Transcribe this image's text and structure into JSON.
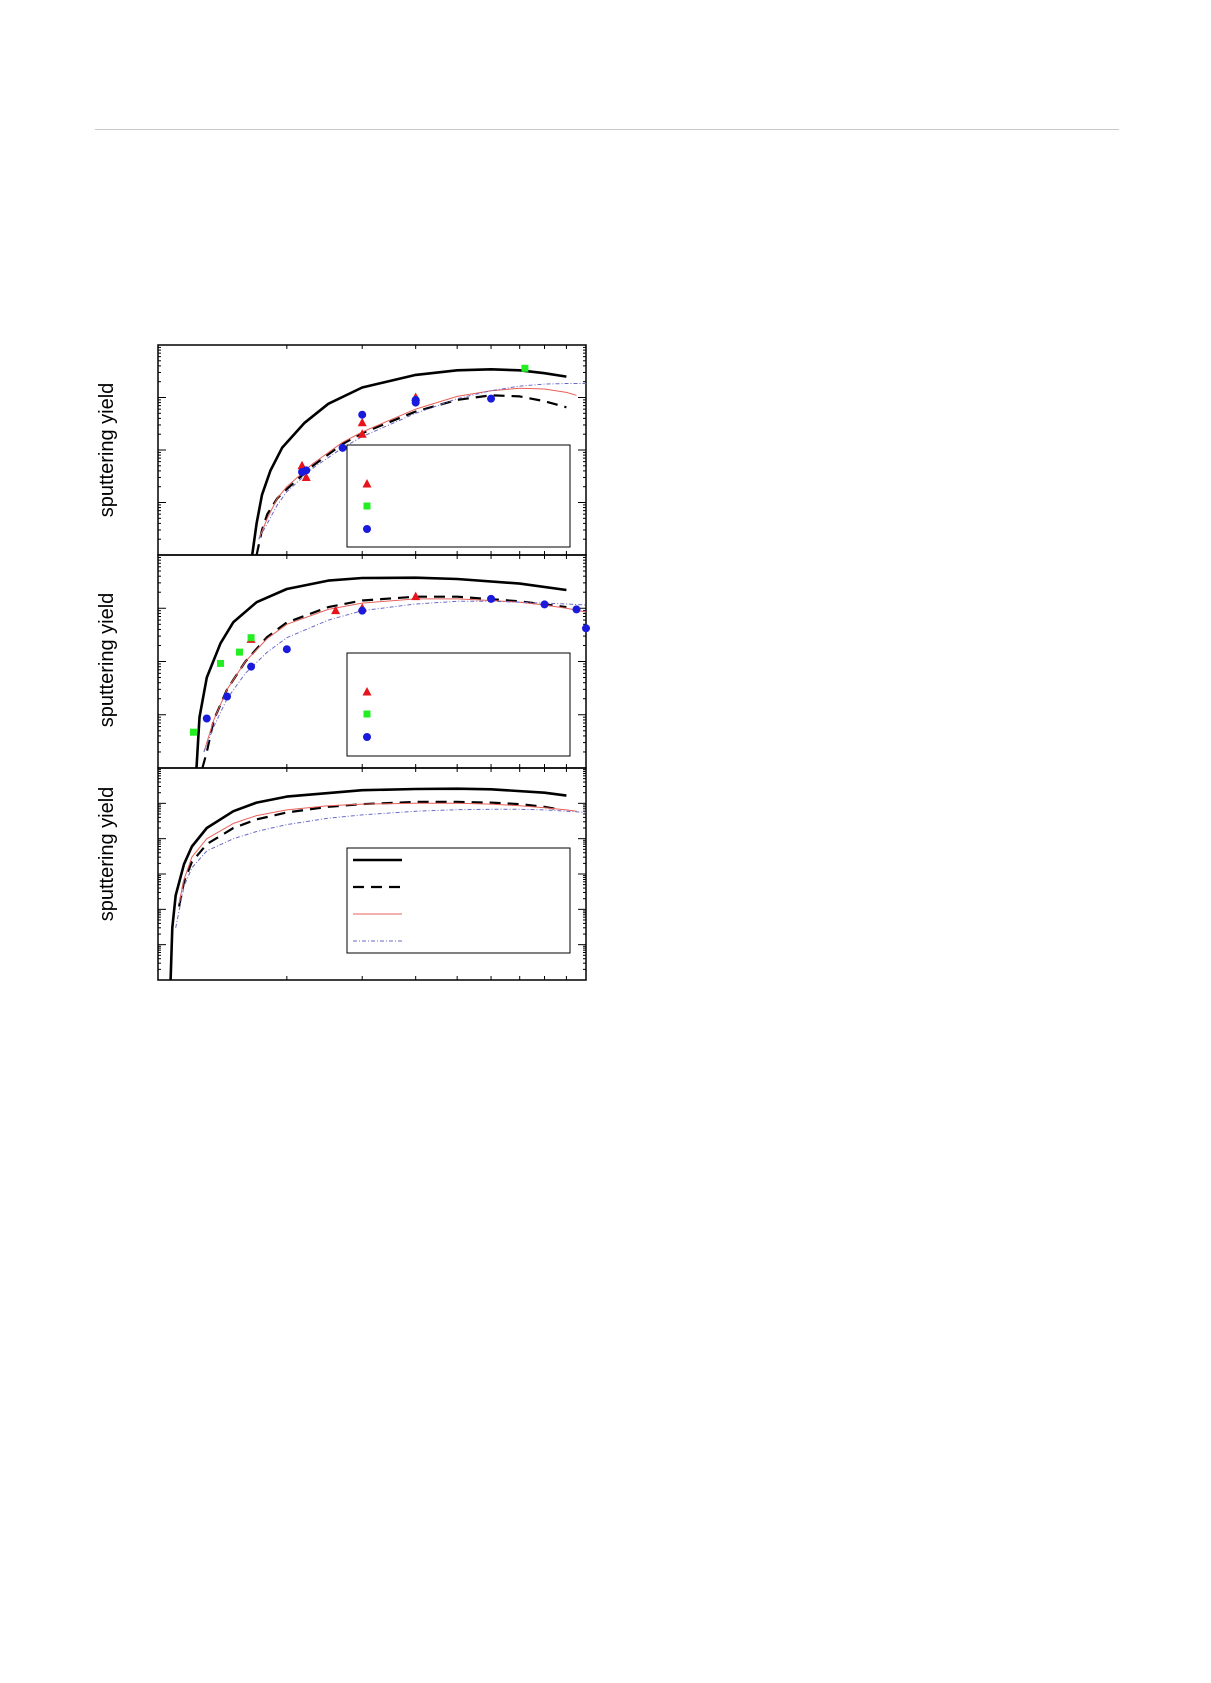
{
  "colors": {
    "rule": "#c8c8c8",
    "axis": "#000000",
    "red": "#e8141c",
    "green": "#22ee22",
    "blue": "#1a1adc",
    "thin_red": "#e8605a",
    "dashdot_blue": "#6a6ac8"
  },
  "chart_data": [
    {
      "type": "line",
      "panel": "top",
      "ylabel": "sputtering yield",
      "xscale": "log",
      "yscale": "log",
      "xlim": [
        1,
        10
      ],
      "ylim": [
        0.001,
        10
      ],
      "grid": false,
      "legend_placement": "lower-right",
      "series": [
        {
          "style": "solid-thick-black",
          "x": [
            1.66,
            1.7,
            1.75,
            1.83,
            1.95,
            2.2,
            2.5,
            3.0,
            4.0,
            5.0,
            6.0,
            7.0,
            8.0,
            9.0
          ],
          "y": [
            0.001,
            0.004,
            0.014,
            0.04,
            0.11,
            0.33,
            0.76,
            1.55,
            2.7,
            3.3,
            3.45,
            3.3,
            2.9,
            2.5
          ]
        },
        {
          "style": "dashed-black",
          "x": [
            1.7,
            1.75,
            1.8,
            1.9,
            2.0,
            2.3,
            2.7,
            3.0,
            4.0,
            5.0,
            6.0,
            7.0,
            8.0,
            9.0
          ],
          "y": [
            0.001,
            0.003,
            0.006,
            0.012,
            0.018,
            0.05,
            0.13,
            0.21,
            0.54,
            0.9,
            1.1,
            1.05,
            0.85,
            0.65
          ]
        },
        {
          "style": "thin-red",
          "x": [
            1.72,
            1.8,
            1.9,
            2.0,
            2.3,
            2.7,
            3.0,
            4.0,
            5.0,
            6.0,
            7.0,
            8.0,
            9.0,
            9.5
          ],
          "y": [
            0.002,
            0.005,
            0.012,
            0.02,
            0.055,
            0.14,
            0.22,
            0.6,
            1.05,
            1.35,
            1.5,
            1.45,
            1.25,
            1.1
          ]
        },
        {
          "style": "dashdot-blue",
          "x": [
            1.72,
            1.8,
            1.9,
            2.0,
            2.3,
            2.7,
            3.0,
            4.0,
            5.0,
            6.0,
            7.0,
            8.0,
            9.0,
            10.0
          ],
          "y": [
            0.002,
            0.004,
            0.009,
            0.016,
            0.045,
            0.11,
            0.18,
            0.5,
            0.95,
            1.35,
            1.65,
            1.8,
            1.85,
            1.85
          ]
        }
      ],
      "points": [
        {
          "marker": "triangle",
          "color": "red",
          "xy": [
            [
              2.17,
              0.05
            ],
            [
              2.22,
              0.03
            ],
            [
              3.0,
              0.33
            ],
            [
              3.0,
              0.2
            ],
            [
              4.0,
              1.0
            ]
          ]
        },
        {
          "marker": "square",
          "color": "green",
          "xy": [
            [
              7.2,
              3.6
            ]
          ]
        },
        {
          "marker": "circle",
          "color": "blue",
          "xy": [
            [
              2.17,
              0.038
            ],
            [
              2.22,
              0.041
            ],
            [
              2.7,
              0.11
            ],
            [
              3.0,
              0.47
            ],
            [
              4.0,
              0.9
            ],
            [
              4.0,
              0.8
            ],
            [
              6.0,
              0.95
            ]
          ]
        }
      ]
    },
    {
      "type": "line",
      "panel": "middle",
      "ylabel": "sputtering yield",
      "xscale": "log",
      "yscale": "log",
      "xlim": [
        1,
        10
      ],
      "ylim": [
        0.001,
        10
      ],
      "grid": false,
      "legend_placement": "lower-right",
      "series": [
        {
          "style": "solid-thick-black",
          "x": [
            1.23,
            1.25,
            1.3,
            1.4,
            1.5,
            1.7,
            2.0,
            2.5,
            3.0,
            4.0,
            5.0,
            7.0,
            9.0
          ],
          "y": [
            0.001,
            0.009,
            0.05,
            0.22,
            0.55,
            1.3,
            2.3,
            3.3,
            3.7,
            3.75,
            3.55,
            2.9,
            2.2
          ]
        },
        {
          "style": "dashed-black",
          "x": [
            1.27,
            1.3,
            1.35,
            1.45,
            1.6,
            1.8,
            2.0,
            2.5,
            3.0,
            4.0,
            5.0,
            7.0,
            9.0
          ],
          "y": [
            0.001,
            0.002,
            0.008,
            0.03,
            0.1,
            0.29,
            0.54,
            1.05,
            1.4,
            1.65,
            1.65,
            1.35,
            1.05
          ]
        },
        {
          "style": "thin-red",
          "x": [
            1.28,
            1.35,
            1.45,
            1.6,
            1.8,
            2.0,
            2.5,
            3.0,
            4.0,
            5.0,
            6.0,
            7.0,
            8.0,
            9.0,
            10.0
          ],
          "y": [
            0.002,
            0.008,
            0.03,
            0.1,
            0.27,
            0.5,
            0.95,
            1.25,
            1.5,
            1.5,
            1.4,
            1.3,
            1.15,
            1.0,
            0.85
          ]
        },
        {
          "style": "dashdot-blue",
          "x": [
            1.28,
            1.35,
            1.45,
            1.6,
            1.8,
            2.0,
            2.5,
            3.0,
            4.0,
            5.0,
            6.0,
            7.0,
            8.0,
            9.0,
            10.0
          ],
          "y": [
            0.002,
            0.006,
            0.02,
            0.06,
            0.15,
            0.28,
            0.6,
            0.9,
            1.2,
            1.35,
            1.35,
            1.3,
            1.25,
            1.2,
            1.15
          ]
        }
      ],
      "points": [
        {
          "marker": "triangle",
          "color": "red",
          "xy": [
            [
              1.65,
              0.26
            ],
            [
              2.6,
              0.9
            ],
            [
              3.0,
              1.0
            ],
            [
              4.0,
              1.65
            ]
          ]
        },
        {
          "marker": "square",
          "color": "green",
          "xy": [
            [
              1.21,
              0.0047
            ],
            [
              1.4,
              0.092
            ],
            [
              1.55,
              0.15
            ],
            [
              1.65,
              0.28
            ]
          ]
        },
        {
          "marker": "circle",
          "color": "blue",
          "xy": [
            [
              1.3,
              0.0085
            ],
            [
              1.45,
              0.022
            ],
            [
              1.65,
              0.08
            ],
            [
              2.0,
              0.17
            ],
            [
              3.0,
              0.9
            ],
            [
              6.0,
              1.5
            ],
            [
              8.0,
              1.18
            ],
            [
              9.5,
              0.95
            ],
            [
              10.0,
              0.42
            ]
          ]
        }
      ]
    },
    {
      "type": "line",
      "panel": "bottom",
      "ylabel": "sputtering yield",
      "xscale": "log",
      "yscale": "log",
      "xlim": [
        1,
        10
      ],
      "ylim": [
        1e-05,
        10
      ],
      "grid": false,
      "legend_placement": "lower-right",
      "series": [
        {
          "style": "solid-thick-black",
          "x": [
            1.07,
            1.08,
            1.1,
            1.15,
            1.2,
            1.3,
            1.5,
            1.7,
            2.0,
            3.0,
            4.0,
            5.0,
            6.0,
            8.0,
            9.0
          ],
          "y": [
            1e-05,
            0.0003,
            0.0025,
            0.019,
            0.06,
            0.2,
            0.6,
            1.05,
            1.55,
            2.35,
            2.55,
            2.6,
            2.5,
            2.0,
            1.65
          ]
        },
        {
          "style": "dashed-black",
          "x": [
            1.12,
            1.15,
            1.2,
            1.3,
            1.5,
            1.7,
            2.0,
            2.5,
            3.0,
            4.0,
            5.0,
            6.0,
            7.0,
            8.0,
            8.5
          ],
          "y": [
            0.0012,
            0.006,
            0.022,
            0.07,
            0.2,
            0.35,
            0.55,
            0.8,
            0.95,
            1.1,
            1.1,
            1.05,
            0.95,
            0.8,
            0.7
          ]
        },
        {
          "style": "thin-red",
          "x": [
            1.12,
            1.15,
            1.2,
            1.3,
            1.5,
            1.7,
            2.0,
            2.5,
            3.0,
            4.0,
            5.0,
            6.0,
            7.0,
            8.0,
            9.0,
            9.5
          ],
          "y": [
            0.0015,
            0.007,
            0.03,
            0.1,
            0.27,
            0.45,
            0.65,
            0.85,
            0.95,
            1.0,
            1.0,
            0.95,
            0.85,
            0.75,
            0.65,
            0.6
          ]
        },
        {
          "style": "dashdot-blue",
          "x": [
            1.1,
            1.15,
            1.2,
            1.3,
            1.5,
            1.7,
            2.0,
            2.5,
            3.0,
            4.0,
            5.0,
            6.0,
            7.0,
            8.0,
            9.0,
            10.0
          ],
          "y": [
            0.0003,
            0.0045,
            0.015,
            0.045,
            0.1,
            0.16,
            0.25,
            0.38,
            0.47,
            0.6,
            0.66,
            0.68,
            0.68,
            0.65,
            0.6,
            0.55
          ]
        }
      ]
    }
  ]
}
